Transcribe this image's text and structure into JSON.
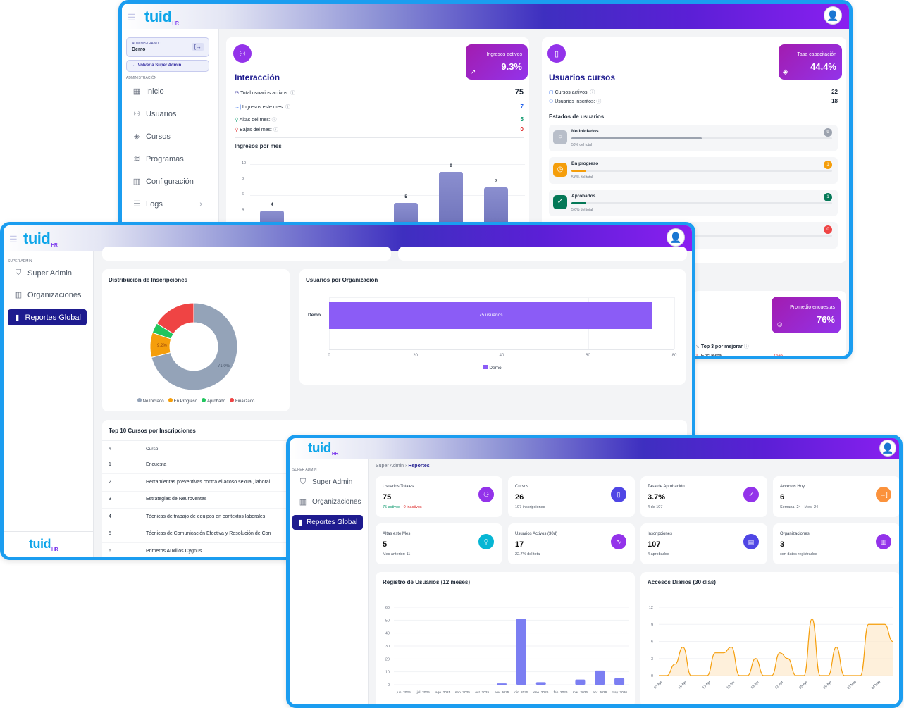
{
  "brand": {
    "name": "tuid",
    "sub": "HR"
  },
  "w1": {
    "admin_label": "ADMINISTRANDO",
    "org": "Demo",
    "back": "← Volver a Super Admin",
    "section": "ADMINISTRACIÓN",
    "nav": [
      "Inicio",
      "Usuarios",
      "Cursos",
      "Programas",
      "Configuración",
      "Logs"
    ],
    "interaccion": {
      "title": "Interacción",
      "kpi_label": "Ingresos activos",
      "kpi_value": "9.3%",
      "rows": [
        {
          "label": "Total usuarios activos:",
          "value": "75"
        },
        {
          "label": "Ingresos este mes:",
          "value": "7"
        },
        {
          "label": "Altas del mes:",
          "value": "5"
        },
        {
          "label": "Bajas del mes:",
          "value": "0"
        }
      ],
      "chart_title": "Ingresos por mes"
    },
    "cursos": {
      "title": "Usuarios cursos",
      "kpi_label": "Tasa capacitación",
      "kpi_value": "44.4%",
      "rows": [
        {
          "label": "Cursos activos:",
          "value": "22"
        },
        {
          "label": "Usuarios inscritos:",
          "value": "18"
        }
      ],
      "estados_title": "Estados de usuarios",
      "estados": [
        {
          "label": "No iniciados",
          "pct": "50% del total",
          "count": "9",
          "fill": 0.5,
          "color": "#9ca3af"
        },
        {
          "label": "En progreso",
          "pct": "5.6% del total",
          "count": "1",
          "fill": 0.056,
          "color": "#f59e0b"
        },
        {
          "label": "Aprobados",
          "pct": "5.6% del total",
          "count": "1",
          "fill": 0.056,
          "color": "#047857"
        },
        {
          "label": "",
          "pct": "",
          "count": "0",
          "fill": 0,
          "color": "#ef4444"
        }
      ]
    },
    "encuestas": {
      "kpi_label": "Promedio encuestas",
      "kpi_value": "76%",
      "top_label": "Top 3 por mejorar",
      "top_row_index": "1.",
      "top_row_name": "Encuesta",
      "top_row_value": "76%"
    }
  },
  "w2": {
    "section": "SUPER ADMIN",
    "nav": [
      "Super Admin",
      "Organizaciones",
      "Reportes Global"
    ],
    "donut_title": "Distribución de Inscripciones",
    "donut_legend": [
      "No Iniciado",
      "En Progreso",
      "Aprobado",
      "Finalizado"
    ],
    "donut_labels": {
      "no_iniciado": "71.0%",
      "en_progreso": "9.2%"
    },
    "org_title": "Usuarios por Organización",
    "org_category": "Demo",
    "org_bar_label": "75 usuarios",
    "org_legend": "Demo",
    "org_ticks": [
      "0",
      "20",
      "40",
      "60",
      "80"
    ],
    "top_title": "Top 10 Cursos por Inscripciones",
    "top_cols": [
      "#",
      "Curso"
    ],
    "top_rows": [
      {
        "n": "1",
        "c": "Encuesta"
      },
      {
        "n": "2",
        "c": "Herramientas preventivas contra el acoso sexual, laboral"
      },
      {
        "n": "3",
        "c": "Estrategias de Neuroventas"
      },
      {
        "n": "4",
        "c": "Técnicas de trabajo de equipos en contextos laborales"
      },
      {
        "n": "5",
        "c": "Técnicas de Comunicación Efectiva y Resolución de Con"
      },
      {
        "n": "6",
        "c": "Primeros Auxilios Cygnus"
      }
    ]
  },
  "w3": {
    "section": "SUPER ADMIN",
    "nav": [
      "Super Admin",
      "Organizaciones",
      "Reportes Global"
    ],
    "crumb_root": "Super Admin",
    "crumb_sep": "›",
    "crumb_current": "Reportes",
    "stats": [
      {
        "label": "Usuarios Totales",
        "value": "75",
        "sub": "",
        "sub_a": "75 activos",
        "sub_sep": " · ",
        "sub_b": "0 inactivos",
        "color": "#9333ea",
        "icon": "users-icon"
      },
      {
        "label": "Cursos",
        "value": "26",
        "sub": "107 inscripciones",
        "color": "#4f46e5",
        "icon": "book-icon"
      },
      {
        "label": "Tasa de Aprobación",
        "value": "3.7%",
        "sub": "4 de 107",
        "color": "#9333ea",
        "icon": "check-icon"
      },
      {
        "label": "Accesos Hoy",
        "value": "6",
        "sub": "Semana: 24 · Mes: 24",
        "color": "#fb923c",
        "icon": "login-icon"
      },
      {
        "label": "Altas este Mes",
        "value": "5",
        "sub": "Mes anterior: 11",
        "color": "#06b6d4",
        "icon": "user-plus-icon"
      },
      {
        "label": "Usuarios Activos (30d)",
        "value": "17",
        "sub": "22.7% del total",
        "color": "#9333ea",
        "icon": "activity-icon"
      },
      {
        "label": "Inscripciones",
        "value": "107",
        "sub": "4 aprobados",
        "color": "#4f46e5",
        "icon": "clipboard-icon"
      },
      {
        "label": "Organizaciones",
        "value": "3",
        "sub": "con datos registrados",
        "color": "#9333ea",
        "icon": "building-icon"
      }
    ],
    "reg_title": "Registro de Usuarios (12 meses)",
    "acc_title": "Accesos Diarios (30 días)"
  },
  "chart_data": [
    {
      "type": "bar",
      "title": "Ingresos por mes",
      "yticks": [
        10,
        8,
        6,
        4
      ],
      "values_visible": [
        4,
        5,
        9,
        7
      ]
    },
    {
      "type": "pie",
      "title": "Distribución de Inscripciones",
      "categories": [
        "No Iniciado",
        "En Progreso",
        "Aprobado",
        "Finalizado"
      ],
      "values": [
        71.0,
        9.2,
        3.7,
        16.1
      ],
      "colors": [
        "#94a3b8",
        "#f59e0b",
        "#22c55e",
        "#ef4444"
      ]
    },
    {
      "type": "bar",
      "title": "Usuarios por Organización",
      "categories": [
        "Demo"
      ],
      "values": [
        75
      ],
      "xlim": [
        0,
        80
      ]
    },
    {
      "type": "bar",
      "title": "Registro de Usuarios (12 meses)",
      "categories": [
        "jun. 2025",
        "jul. 2025",
        "ago. 2025",
        "sep. 2025",
        "oct. 2025",
        "nov. 2025",
        "dic. 2025",
        "ene. 2026",
        "feb. 2026",
        "mar. 2026",
        "abr. 2026",
        "may. 2026"
      ],
      "values": [
        0,
        0,
        0,
        0,
        0,
        1,
        51,
        2,
        0,
        4,
        11,
        5
      ],
      "ylim": [
        0,
        60
      ],
      "yticks": [
        0,
        10,
        20,
        30,
        40,
        50,
        60
      ]
    },
    {
      "type": "line",
      "title": "Accesos Diarios (30 días)",
      "ylim": [
        0,
        12
      ],
      "yticks": [
        0,
        3,
        6,
        9,
        12
      ],
      "xticks": [
        "07 Apr",
        "10 Apr",
        "13 Apr",
        "16 Apr",
        "19 Apr",
        "22 Apr",
        "25 Apr",
        "28 Apr",
        "01 May",
        "04 May"
      ],
      "values": [
        0,
        0,
        2,
        5,
        0,
        0,
        0,
        4,
        4,
        5,
        0,
        0,
        3,
        0,
        0,
        4,
        3,
        0,
        0,
        10,
        0,
        0,
        5,
        0,
        0,
        0,
        9,
        9,
        9,
        6
      ]
    }
  ]
}
